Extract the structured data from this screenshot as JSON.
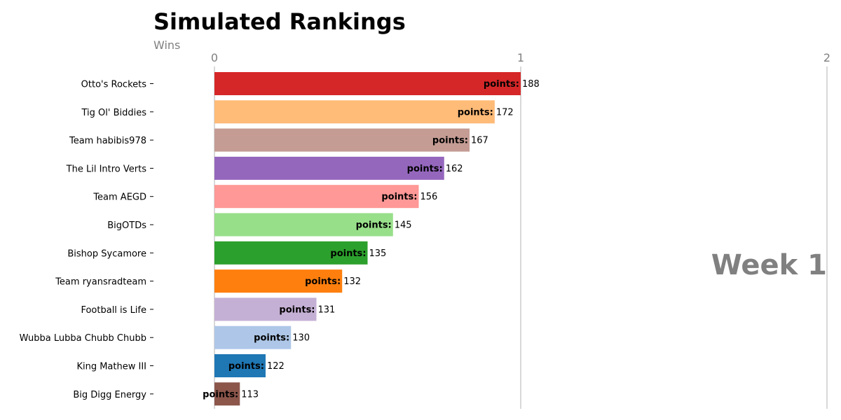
{
  "chart_data": {
    "type": "bar",
    "orientation": "horizontal",
    "title": "Simulated Rankings",
    "xlabel": "Wins",
    "ylabel": "",
    "xlim": [
      0,
      2
    ],
    "x_ticks": [
      "0",
      "1",
      "2"
    ],
    "grid": false,
    "value_label_prefix": "points:",
    "annotation": "Week 1",
    "categories": [
      "Otto's Rockets",
      "Tig Ol' Biddies",
      "Team habibis978",
      "The Lil Intro Verts",
      "Team AEGD",
      "BigOTDs",
      "Bishop Sycamore",
      "Team ryansradteam",
      "Football is Life",
      "Wubba Lubba Chubb Chubb",
      "King Mathew III",
      "Big Digg Energy"
    ],
    "values": [
      1.0,
      0.915,
      0.833,
      0.75,
      0.667,
      0.583,
      0.5,
      0.417,
      0.333,
      0.25,
      0.167,
      0.083
    ],
    "points": [
      188,
      172,
      167,
      162,
      156,
      145,
      135,
      132,
      131,
      130,
      122,
      113
    ],
    "colors": [
      "#d62728",
      "#ffbb78",
      "#c49c94",
      "#9467bd",
      "#ff9896",
      "#98df8a",
      "#2ca02c",
      "#ff7f0e",
      "#c5b0d5",
      "#aec7e8",
      "#1f77b4",
      "#8c564b"
    ]
  }
}
